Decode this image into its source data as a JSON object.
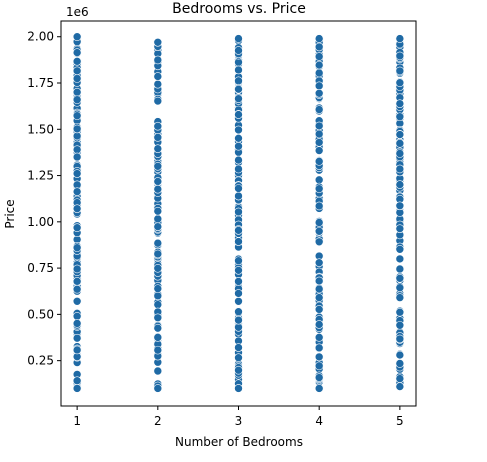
{
  "chart_data": {
    "type": "scatter",
    "title": "Bedrooms vs. Price",
    "xlabel": "Number of Bedrooms",
    "ylabel": "Price",
    "y_offset_label": "1e6",
    "xlim": [
      0.8,
      5.2
    ],
    "ylim": [
      0.005,
      2.085
    ],
    "x_ticks": [
      1,
      2,
      3,
      4,
      5
    ],
    "x_tick_labels": [
      "1",
      "2",
      "3",
      "4",
      "5"
    ],
    "y_ticks": [
      0.25,
      0.5,
      0.75,
      1.0,
      1.25,
      1.5,
      1.75,
      2.0
    ],
    "y_tick_labels": [
      "0.25",
      "0.50",
      "0.75",
      "1.00",
      "1.25",
      "1.50",
      "1.75",
      "2.00"
    ],
    "grid": false,
    "series": [
      {
        "name": "1 bedroom",
        "x": 1,
        "y_min": 0.1,
        "y_max": 2.0
      },
      {
        "name": "2 bedrooms",
        "x": 2,
        "y_min": 0.1,
        "y_max": 1.97
      },
      {
        "name": "3 bedrooms",
        "x": 3,
        "y_min": 0.1,
        "y_max": 1.99
      },
      {
        "name": "4 bedrooms",
        "x": 4,
        "y_min": 0.1,
        "y_max": 1.99
      },
      {
        "name": "5 bedrooms",
        "x": 5,
        "y_min": 0.11,
        "y_max": 1.99
      }
    ],
    "marker_color": "#1f6aa5"
  }
}
